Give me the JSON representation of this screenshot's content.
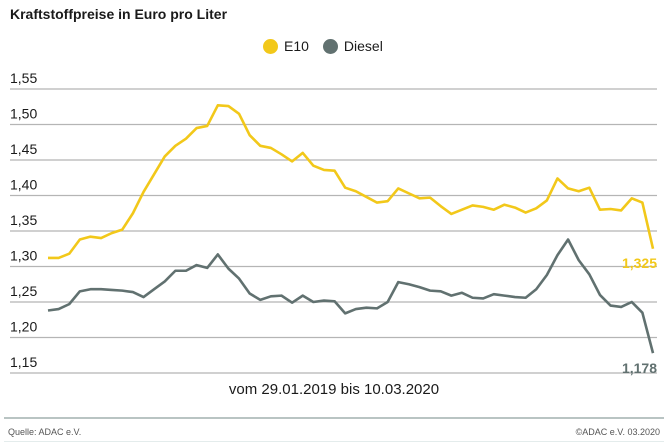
{
  "chart_data": {
    "type": "line",
    "title": "Kraftstoffpreise in Euro pro Liter",
    "xlabel": "vom 29.01.2019 bis 10.03.2020",
    "ylabel": "",
    "ylim": [
      1.15,
      1.55
    ],
    "yticks": [
      "1,15",
      "1,20",
      "1,25",
      "1,30",
      "1,35",
      "1,40",
      "1,45",
      "1,50",
      "1,55"
    ],
    "grid": true,
    "legend_position": "top-center",
    "series": [
      {
        "name": "E10",
        "color": "#f2c81a",
        "end_label": "1,325",
        "values": [
          1.312,
          1.312,
          1.318,
          1.338,
          1.342,
          1.34,
          1.347,
          1.352,
          1.375,
          1.405,
          1.43,
          1.455,
          1.47,
          1.48,
          1.495,
          1.498,
          1.527,
          1.526,
          1.515,
          1.485,
          1.47,
          1.467,
          1.458,
          1.448,
          1.46,
          1.442,
          1.436,
          1.435,
          1.411,
          1.406,
          1.398,
          1.39,
          1.392,
          1.41,
          1.403,
          1.396,
          1.397,
          1.385,
          1.374,
          1.38,
          1.386,
          1.384,
          1.38,
          1.387,
          1.383,
          1.376,
          1.382,
          1.393,
          1.424,
          1.41,
          1.406,
          1.411,
          1.38,
          1.381,
          1.379,
          1.396,
          1.39,
          1.325
        ]
      },
      {
        "name": "Diesel",
        "color": "#617170",
        "end_label": "1,178",
        "values": [
          1.238,
          1.24,
          1.247,
          1.265,
          1.268,
          1.268,
          1.267,
          1.266,
          1.264,
          1.257,
          1.268,
          1.279,
          1.294,
          1.294,
          1.302,
          1.298,
          1.317,
          1.297,
          1.283,
          1.262,
          1.253,
          1.258,
          1.259,
          1.249,
          1.259,
          1.25,
          1.252,
          1.251,
          1.234,
          1.24,
          1.242,
          1.241,
          1.25,
          1.278,
          1.275,
          1.271,
          1.266,
          1.265,
          1.259,
          1.263,
          1.256,
          1.255,
          1.261,
          1.259,
          1.257,
          1.256,
          1.268,
          1.288,
          1.316,
          1.338,
          1.309,
          1.289,
          1.26,
          1.245,
          1.243,
          1.25,
          1.235,
          1.178
        ]
      }
    ]
  },
  "footer": {
    "source": "Quelle: ADAC e.V.",
    "copyright": "©ADAC e.V.  03.2020"
  }
}
